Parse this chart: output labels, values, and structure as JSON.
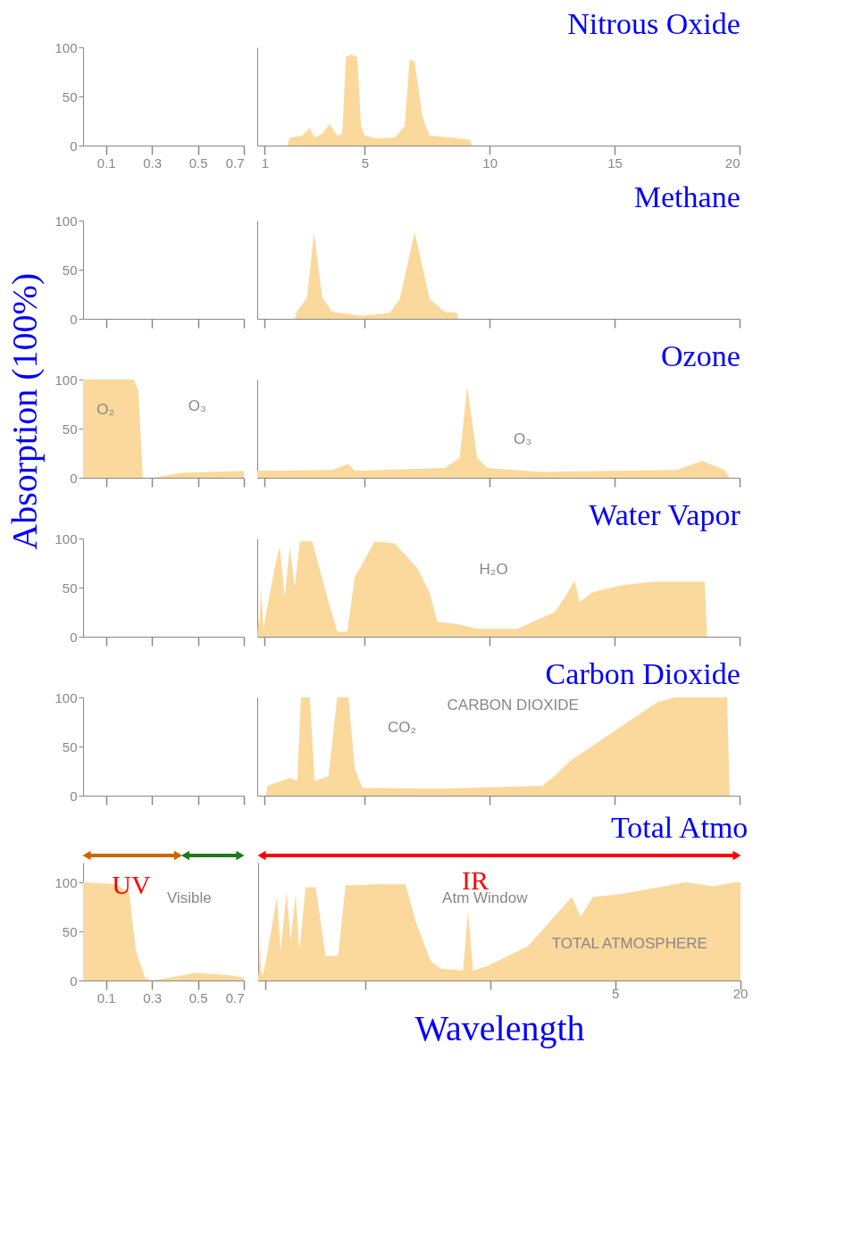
{
  "chart_data": [
    {
      "type": "area",
      "xlim": [
        0,
        0.7
      ],
      "ylim": [
        0,
        100
      ],
      "yticks": [
        0,
        50,
        100
      ],
      "xticks": [
        0.1,
        0.3,
        0.5,
        0.7
      ],
      "color": "#fbd89b"
    },
    {
      "type": "area",
      "title": "Nitrous Oxide",
      "xlim": [
        0.7,
        20
      ],
      "ylim": [
        0,
        100
      ],
      "xticks": [
        1,
        5,
        10,
        15,
        20
      ],
      "tick_labels": "x",
      "color": "#fbd89b",
      "x": [
        1.9,
        2.0,
        2.5,
        2.8,
        3.0,
        3.3,
        3.6,
        3.9,
        4.1,
        4.25,
        4.45,
        4.7,
        4.85,
        5.0,
        5.5,
        6.2,
        6.6,
        6.8,
        7.0,
        7.3,
        7.6,
        8.5,
        9.2,
        9.3
      ],
      "values": [
        0,
        8,
        10,
        18,
        8,
        12,
        22,
        10,
        12,
        90,
        93,
        90,
        20,
        10,
        7,
        8,
        20,
        88,
        85,
        30,
        10,
        8,
        6,
        0
      ]
    },
    {
      "type": "area",
      "xlim": [
        0,
        0.7
      ],
      "ylim": [
        0,
        100
      ],
      "yticks": [
        0,
        50,
        100
      ],
      "xticks": [
        0.1,
        0.3,
        0.5,
        0.7
      ],
      "tick_labels": "y",
      "color": "#fbd89b"
    },
    {
      "type": "area",
      "title": "Methane",
      "xlim": [
        0.7,
        20
      ],
      "ylim": [
        0,
        100
      ],
      "xticks": [
        1,
        5,
        10,
        15,
        20
      ],
      "tick_labels": false,
      "color": "#fbd89b",
      "x": [
        2.2,
        2.3,
        2.7,
        2.97,
        3.3,
        3.7,
        4.9,
        6.0,
        6.4,
        7.0,
        7.6,
        8.2,
        8.7,
        8.75
      ],
      "values": [
        0,
        8,
        22,
        88,
        22,
        7,
        3,
        6,
        20,
        88,
        20,
        7,
        6,
        0
      ]
    },
    {
      "type": "area",
      "ylabel": "Absorption (100%)",
      "xlim": [
        0,
        0.7
      ],
      "ylim": [
        0,
        100
      ],
      "yticks": [
        0,
        50,
        100
      ],
      "xticks": [
        0.1,
        0.3,
        0.5,
        0.7
      ],
      "tick_labels": "y",
      "color": "#fbd89b",
      "x": [
        0,
        0.22,
        0.24,
        0.26,
        0.3,
        0.43,
        0.7
      ],
      "values": [
        100,
        100,
        90,
        0,
        0,
        5,
        7
      ],
      "annotations": [
        "O₂",
        "O₃"
      ]
    },
    {
      "type": "area",
      "title": "Ozone",
      "xlim": [
        0.7,
        20
      ],
      "ylim": [
        0,
        100
      ],
      "xticks": [
        1,
        5,
        10,
        15,
        20
      ],
      "tick_labels": false,
      "color": "#fbd89b",
      "x": [
        0.7,
        1,
        3.7,
        4.35,
        4.6,
        8.2,
        8.8,
        9.1,
        9.5,
        9.9,
        12,
        17.5,
        18.5,
        19.4,
        19.6
      ],
      "values": [
        7,
        7,
        8,
        14,
        7,
        10,
        20,
        93,
        20,
        10,
        6,
        8,
        17,
        8,
        0
      ],
      "annotations": [
        "O₃"
      ]
    },
    {
      "type": "area",
      "xlim": [
        0,
        0.7
      ],
      "ylim": [
        0,
        100
      ],
      "yticks": [
        0,
        50,
        100
      ],
      "xticks": [
        0.1,
        0.3,
        0.5,
        0.7
      ],
      "tick_labels": "y",
      "color": "#fbd89b"
    },
    {
      "type": "area",
      "title": "Water Vapor",
      "xlim": [
        0.7,
        20
      ],
      "ylim": [
        0,
        100
      ],
      "xticks": [
        1,
        5,
        10,
        15,
        20
      ],
      "tick_labels": false,
      "color": "#fbd89b",
      "x": [
        0.7,
        0.76,
        0.79,
        0.85,
        0.95,
        1.1,
        1.4,
        1.6,
        1.8,
        2.0,
        2.2,
        2.4,
        2.9,
        3.5,
        3.9,
        4.3,
        4.6,
        5.4,
        6.2,
        7.1,
        7.6,
        7.9,
        8.7,
        9.5,
        11.1,
        12.6,
        13.0,
        13.4,
        13.6,
        14.1,
        15.2,
        16.5,
        18.6,
        18.7
      ],
      "values": [
        0,
        20,
        10,
        50,
        8,
        30,
        70,
        92,
        40,
        92,
        50,
        97,
        97,
        40,
        5,
        5,
        60,
        97,
        95,
        70,
        45,
        15,
        13,
        8,
        8,
        25,
        40,
        57,
        35,
        45,
        52,
        56,
        56,
        0
      ],
      "annotations": [
        "H₂O"
      ]
    },
    {
      "type": "area",
      "xlim": [
        0,
        0.7
      ],
      "ylim": [
        0,
        100
      ],
      "yticks": [
        0,
        50,
        100
      ],
      "xticks": [
        0.1,
        0.3,
        0.5,
        0.7
      ],
      "tick_labels": "y",
      "color": "#fbd89b"
    },
    {
      "type": "area",
      "title": "Carbon Dioxide",
      "xlim": [
        0.7,
        20
      ],
      "ylim": [
        0,
        100
      ],
      "xticks": [
        1,
        5,
        10,
        15,
        20
      ],
      "tick_labels": false,
      "color": "#fbd89b",
      "x": [
        1.05,
        1.1,
        2.0,
        2.3,
        2.45,
        2.8,
        3.0,
        3.55,
        3.9,
        4.35,
        4.6,
        4.9,
        8,
        12.1,
        12.6,
        13.2,
        16.7,
        17.4,
        19.5,
        19.6
      ],
      "values": [
        0,
        10,
        18,
        15,
        100,
        100,
        15,
        20,
        100,
        100,
        28,
        8,
        7,
        10,
        20,
        35,
        95,
        100,
        100,
        0
      ],
      "annotations": [
        "CARBON DIOXIDE",
        "CO₂"
      ]
    },
    {
      "type": "area",
      "xlim": [
        0,
        0.7
      ],
      "ylim": [
        0,
        120
      ],
      "yticks": [
        0,
        50,
        100
      ],
      "xticks": [
        0.1,
        0.3,
        0.5,
        0.7
      ],
      "color": "#fbd89b",
      "x": [
        0,
        0.14,
        0.2,
        0.23,
        0.27,
        0.3,
        0.43,
        0.49,
        0.65,
        0.7
      ],
      "values": [
        100,
        98,
        90,
        30,
        3,
        0,
        5,
        8,
        5,
        3
      ],
      "annotations": [
        "UV",
        "Visible"
      ]
    },
    {
      "type": "area",
      "title": "Total Atmo",
      "xlabel": "Wavelength",
      "xlim": [
        0.7,
        20
      ],
      "ylim": [
        0,
        120
      ],
      "xticks": [
        1,
        5,
        10,
        15,
        20
      ],
      "tick_labels": false,
      "color": "#fbd89b",
      "x": [
        0.7,
        0.75,
        0.78,
        0.81,
        0.88,
        1.05,
        1.45,
        1.6,
        1.84,
        2.0,
        2.2,
        2.35,
        2.6,
        3.0,
        3.4,
        3.9,
        4.2,
        4.9,
        5.2,
        6.6,
        7.0,
        7.6,
        8.0,
        8.9,
        9.1,
        9.3,
        9.9,
        11.5,
        13.25,
        13.6,
        14.1,
        15.2,
        17.8,
        18.9,
        19.8,
        20
      ],
      "values": [
        3,
        15,
        45,
        10,
        5,
        25,
        85,
        30,
        90,
        40,
        88,
        30,
        95,
        95,
        25,
        25,
        97,
        97,
        98,
        98,
        60,
        20,
        12,
        10,
        70,
        10,
        15,
        35,
        85,
        65,
        85,
        88,
        100,
        96,
        100,
        100
      ],
      "annotations": [
        "IR",
        "Atm Window",
        "TOTAL ATMOSPHERE",
        "5",
        "20"
      ]
    }
  ]
}
